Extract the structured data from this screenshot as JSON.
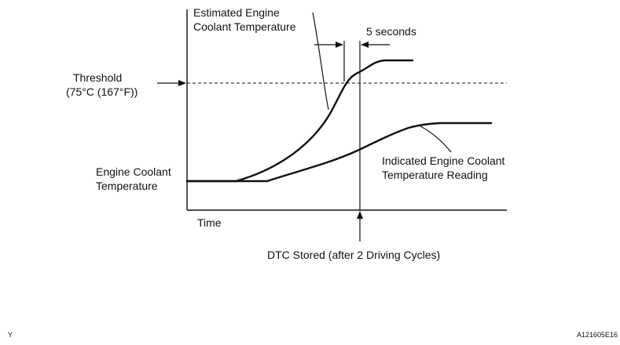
{
  "labels": {
    "estimated_line1": "Estimated Engine",
    "estimated_line2": "Coolant Temperature",
    "five_seconds": "5 seconds",
    "threshold_line1": "Threshold",
    "threshold_line2": "(75°C (167°F))",
    "engine_coolant_line1": "Engine Coolant",
    "engine_coolant_line2": "Temperature",
    "indicated_line1": "Indicated Engine Coolant",
    "indicated_line2": "Temperature Reading",
    "time": "Time",
    "dtc_stored": "DTC Stored (after 2 Driving Cycles)",
    "corner_y": "Y",
    "figure_id": "A121605E16"
  },
  "colors": {
    "ink": "#111111",
    "background": "#ffffff"
  }
}
